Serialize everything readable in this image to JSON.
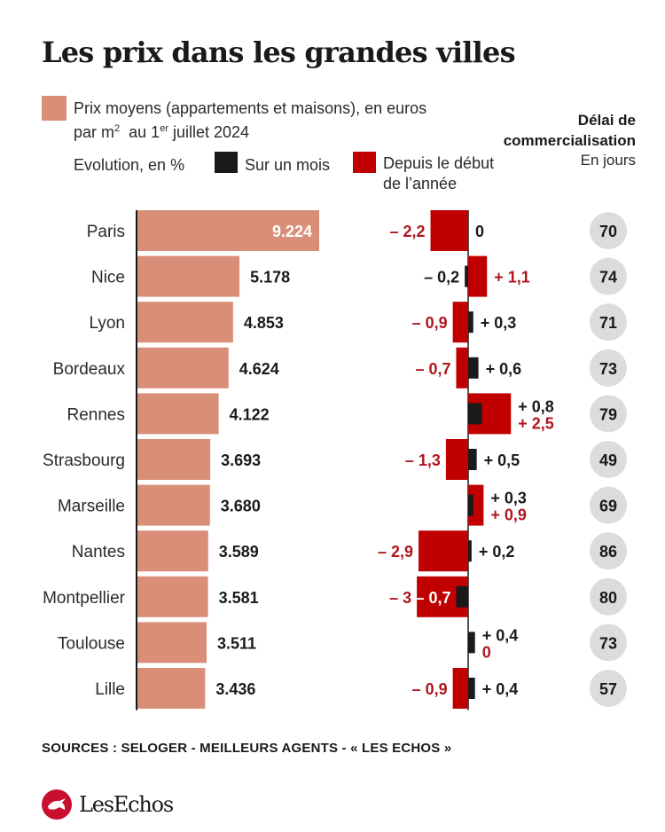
{
  "title": "Les prix dans les grandes villes",
  "legend": {
    "price_line1": "Prix moyens (appartements et maisons), en euros",
    "price_line2_a": "par m",
    "price_line2_sup": "2",
    "price_line2_b": "  au 1",
    "price_line2_sup2": "er",
    "price_line2_c": " juillet 2024",
    "evolution_label": "Evolution, en %",
    "month_label": "Sur un mois",
    "year_label_1": "Depuis le début",
    "year_label_2": "de l’année"
  },
  "delai": {
    "head_1": "Délai de",
    "head_2": "commercialisation",
    "sub": "En jours"
  },
  "colors": {
    "price_bar": "#d98e77",
    "year_bar": "#c00000",
    "month_bar": "#1a1a1a",
    "negative_text": "#b0161e",
    "circle": "#dcdcdc"
  },
  "chart_data": {
    "type": "bar",
    "categories": [
      "Paris",
      "Nice",
      "Lyon",
      "Bordeaux",
      "Rennes",
      "Strasbourg",
      "Marseille",
      "Nantes",
      "Montpellier",
      "Toulouse",
      "Lille"
    ],
    "price_values": [
      9224,
      5178,
      4853,
      4624,
      4122,
      3693,
      3680,
      3589,
      3581,
      3511,
      3436
    ],
    "price_labels": [
      "9.224",
      "5.178",
      "4.853",
      "4.624",
      "4.122",
      "3.693",
      "3.680",
      "3.589",
      "3.581",
      "3.511",
      "3.436"
    ],
    "month_values": [
      0,
      -0.2,
      0.3,
      0.6,
      0.8,
      0.5,
      0.3,
      0.2,
      -0.7,
      0.4,
      0.4
    ],
    "month_labels": [
      "0",
      "– 0,2",
      "+ 0,3",
      "+ 0,6",
      "+ 0,8",
      "+ 0,5",
      "+ 0,3",
      "+ 0,2",
      "– 0,7",
      "+ 0,4",
      "+ 0,4"
    ],
    "year_values": [
      -2.2,
      1.1,
      -0.9,
      -0.7,
      2.5,
      -1.3,
      0.9,
      -2.9,
      -3,
      0,
      -0.9
    ],
    "year_labels": [
      "– 2,2",
      "+ 1,1",
      "– 0,9",
      "– 0,7",
      "+ 2,5",
      "– 1,3",
      "+ 0,9",
      "– 2,9",
      "– 3",
      "0",
      "– 0,9"
    ],
    "delai_values": [
      "70",
      "74",
      "71",
      "73",
      "79",
      "49",
      "69",
      "86",
      "80",
      "73",
      "57"
    ]
  },
  "sources": "SOURCES : SELOGER - MEILLEURS AGENTS - « LES ECHOS »",
  "logo_text": "LesEchos"
}
